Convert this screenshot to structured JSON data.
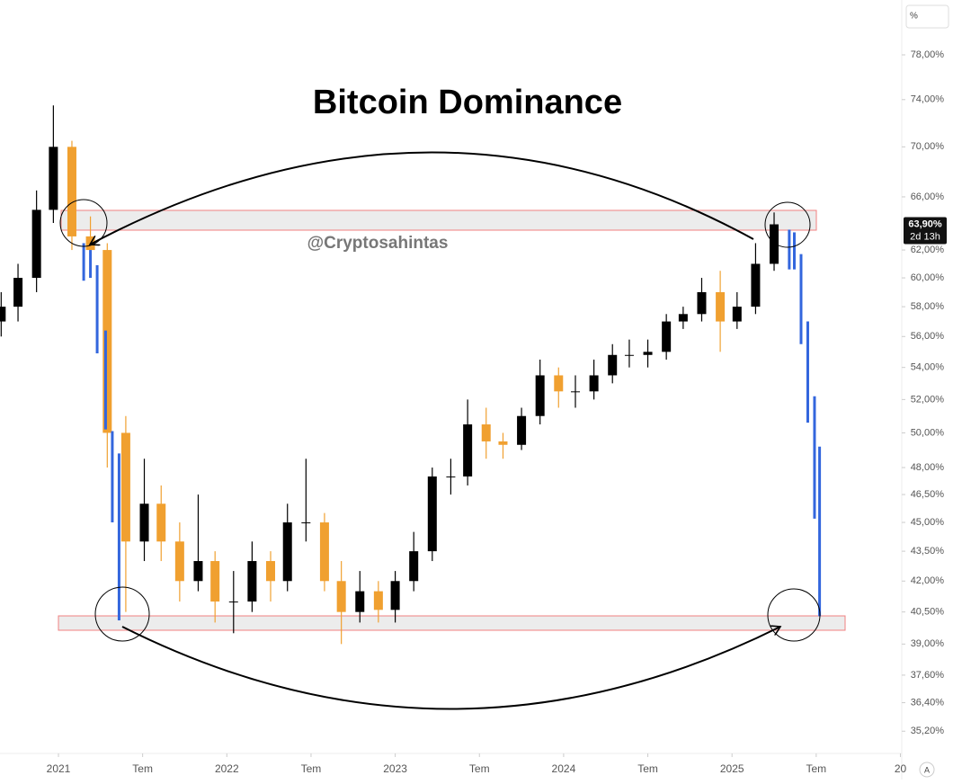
{
  "chart_data": {
    "type": "candlestick",
    "title": "Bitcoin Dominance",
    "watermark": "@Cryptosahintas",
    "log_scale": true,
    "up_color": "#000000",
    "down_color": "#f0a030",
    "xlim": [
      2020.653,
      2026.008
    ],
    "ylim": [
      34.4,
      83.2
    ],
    "xticks": [
      2021,
      {
        "value": 2021.5,
        "label": "Tem"
      },
      2022,
      {
        "value": 2022.5,
        "label": "Tem"
      },
      2023,
      {
        "value": 2023.5,
        "label": "Tem"
      },
      2024,
      {
        "value": 2024.5,
        "label": "Tem"
      },
      2025,
      {
        "value": 2025.5,
        "label": "Tem"
      },
      {
        "value": 2026,
        "label": "20"
      }
    ],
    "yticks": [
      {
        "value": 78,
        "label": "78,00%"
      },
      {
        "value": 74,
        "label": "74,00%"
      },
      {
        "value": 70,
        "label": "70,00%"
      },
      {
        "value": 66,
        "label": "66,00%"
      },
      {
        "value": 62,
        "label": "62,00%"
      },
      {
        "value": 60,
        "label": "60,00%"
      },
      {
        "value": 58,
        "label": "58,00%"
      },
      {
        "value": 56,
        "label": "56,00%"
      },
      {
        "value": 54,
        "label": "54,00%"
      },
      {
        "value": 52,
        "label": "52,00%"
      },
      {
        "value": 50,
        "label": "50,00%"
      },
      {
        "value": 48,
        "label": "48,00%"
      },
      {
        "value": 46.5,
        "label": "46,50%"
      },
      {
        "value": 45,
        "label": "45,00%"
      },
      {
        "value": 43.5,
        "label": "43,50%"
      },
      {
        "value": 42,
        "label": "42,00%"
      },
      {
        "value": 40.5,
        "label": "40,50%"
      },
      {
        "value": 39,
        "label": "39,00%"
      },
      {
        "value": 37.6,
        "label": "37,60%"
      },
      {
        "value": 36.4,
        "label": "36,40%"
      },
      {
        "value": 35.2,
        "label": "35,20%"
      }
    ],
    "scale_button": "%",
    "auto_button": "A",
    "last_price": {
      "value": 63.9,
      "label": "63,90%"
    },
    "countdown": "2d 13h",
    "candles": {
      "x": [
        2020.66,
        2020.76,
        2020.87,
        2020.97,
        2021.08,
        2021.19,
        2021.29,
        2021.4,
        2021.51,
        2021.61,
        2021.72,
        2021.83,
        2021.93,
        2022.04,
        2022.15,
        2022.26,
        2022.36,
        2022.47,
        2022.58,
        2022.68,
        2022.79,
        2022.9,
        2023.0,
        2023.11,
        2023.22,
        2023.33,
        2023.43,
        2023.54,
        2023.64,
        2023.75,
        2023.86,
        2023.97,
        2024.07,
        2024.18,
        2024.29,
        2024.39,
        2024.5,
        2024.61,
        2024.71,
        2024.82,
        2024.93,
        2025.03,
        2025.14,
        2025.25
      ],
      "open": [
        57,
        58,
        60,
        65,
        70,
        63,
        62,
        50,
        44,
        46,
        44,
        42,
        43,
        41,
        41,
        43,
        42,
        45,
        45,
        42,
        40.5,
        41.5,
        40.6,
        42,
        43.5,
        47.5,
        47.5,
        50.5,
        49.5,
        49.3,
        51,
        53.5,
        52.5,
        52.5,
        53.5,
        54.8,
        54.8,
        55,
        57,
        57.5,
        59,
        57,
        58,
        61
      ],
      "high": [
        59,
        61,
        66.5,
        73.5,
        70.5,
        64.5,
        62.5,
        51,
        48.5,
        47,
        45,
        46.5,
        43.5,
        42.5,
        44,
        43.5,
        46,
        48.5,
        45.5,
        43,
        42.5,
        42,
        42.5,
        44.5,
        48,
        48.5,
        52,
        51.5,
        50,
        51.5,
        54.5,
        54,
        53.5,
        54.5,
        55.5,
        55.8,
        55.8,
        57.5,
        58,
        60,
        60.5,
        59,
        62.5,
        64.8
      ],
      "low": [
        56,
        57,
        59,
        64,
        62,
        61,
        48,
        40.5,
        43,
        43,
        41,
        41.5,
        40,
        39.5,
        40.5,
        41,
        41.5,
        44,
        41.5,
        39,
        40,
        40,
        40,
        41.5,
        43,
        46.5,
        47,
        48.5,
        48.5,
        49,
        50.5,
        51.5,
        51.5,
        52,
        53,
        54,
        54,
        54.5,
        56.5,
        57,
        55,
        56.5,
        57.5,
        60.5
      ],
      "close": [
        58,
        60,
        65,
        70,
        63,
        62,
        50,
        44,
        46,
        44,
        42,
        43,
        41,
        41,
        43,
        42,
        45,
        45,
        42,
        40.5,
        41.5,
        40.6,
        42,
        43.5,
        47.5,
        47.5,
        50.5,
        49.5,
        49.3,
        51,
        53.5,
        52.5,
        52.5,
        53.5,
        54.8,
        54.8,
        55,
        57,
        57.5,
        59,
        57,
        58,
        61,
        63.9
      ]
    },
    "projection": {
      "color": "#3366dd",
      "x": [
        2021.15,
        2021.19,
        2021.23,
        2021.28,
        2021.32,
        2021.36,
        2025.34,
        2025.37,
        2025.41,
        2025.45,
        2025.49,
        2025.52
      ],
      "high": [
        62.5,
        62,
        60.9,
        56.4,
        50.1,
        48.8,
        63.5,
        63.3,
        61.7,
        57.0,
        52.2,
        49.2
      ],
      "low": [
        59.8,
        60,
        54.9,
        50.2,
        45.0,
        40.1,
        60.6,
        60.6,
        55.5,
        50.6,
        45.2,
        40.3
      ]
    }
  }
}
